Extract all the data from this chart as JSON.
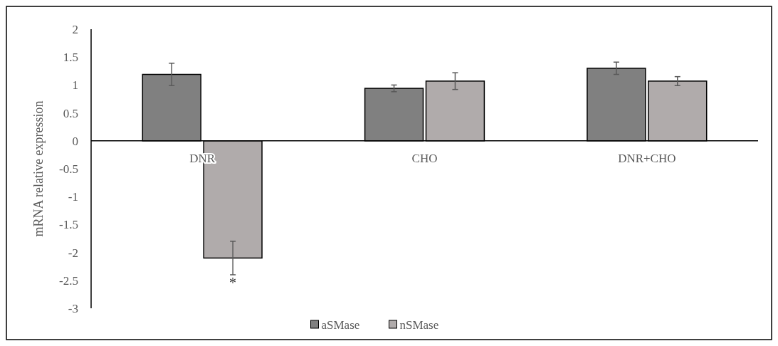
{
  "chart_data": {
    "type": "bar",
    "ylabel": "mRNA relative expression",
    "categories": [
      "DNR",
      "CHO",
      "DNR+CHO"
    ],
    "series": [
      {
        "name": "aSMase",
        "color": "#808080",
        "values": [
          1.19,
          0.94,
          1.3
        ],
        "errors": [
          0.2,
          0.06,
          0.11
        ]
      },
      {
        "name": "nSMase",
        "color": "#b0abab",
        "values": [
          -2.1,
          1.07,
          1.07
        ],
        "errors": [
          0.3,
          0.15,
          0.08
        ]
      }
    ],
    "ylim": [
      -3,
      2
    ],
    "yticks": [
      -3,
      -2.5,
      -2,
      -1.5,
      -1,
      -0.5,
      0,
      0.5,
      1,
      1.5,
      2
    ],
    "grid": false,
    "legend": "bottom",
    "annotations": [
      "*"
    ]
  }
}
